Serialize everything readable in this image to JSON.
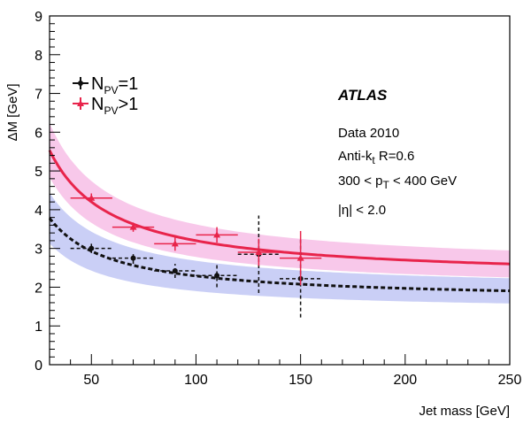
{
  "chart_data": {
    "type": "line",
    "title": "",
    "xlabel": "Jet mass [GeV]",
    "ylabel": "ΔM  [GeV]",
    "xlim": [
      30,
      250
    ],
    "ylim": [
      0,
      9
    ],
    "x_ticks": [
      50,
      100,
      150,
      200,
      250
    ],
    "y_ticks": [
      0,
      1,
      2,
      3,
      4,
      5,
      6,
      7,
      8,
      9
    ],
    "legend": {
      "placement": "top-left",
      "entries": [
        {
          "main": "N",
          "sub": "PV",
          "rest": "=1",
          "color": "#111111"
        },
        {
          "main": "N",
          "sub": "PV",
          "rest": ">1",
          "color": "#e8244b"
        }
      ]
    },
    "annotations": {
      "experiment": "ATLAS",
      "line1": "Data 2010",
      "line2_main": "Anti-k",
      "line2_sub": "t",
      "line2_rest": " R=0.6",
      "line3_a": "300 < p",
      "line3_sub": "T",
      "line3_b": " < 400 GeV",
      "line4": "|η| < 2.0"
    },
    "series": [
      {
        "name": "NPV=1",
        "color": "#111111",
        "band_color": "#9fa8ee",
        "points": [
          {
            "x": 50,
            "y": 3.0,
            "xerr": 10,
            "yerr": 0.12
          },
          {
            "x": 70,
            "y": 2.75,
            "xerr": 10,
            "yerr": 0.15
          },
          {
            "x": 90,
            "y": 2.42,
            "xerr": 10,
            "yerr": 0.18
          },
          {
            "x": 110,
            "y": 2.3,
            "xerr": 10,
            "yerr": 0.3
          },
          {
            "x": 130,
            "y": 2.85,
            "xerr": 10,
            "yerr": 1.0
          },
          {
            "x": 150,
            "y": 2.22,
            "xerr": 10,
            "yerr": 1.0
          }
        ],
        "fit": {
          "a": 1.65,
          "b": 64,
          "band": 0.28
        }
      },
      {
        "name": "NPV>1",
        "color": "#e8244b",
        "band_color": "#f39ad8",
        "points": [
          {
            "x": 50,
            "y": 4.3,
            "xerr": 10,
            "yerr": 0.12
          },
          {
            "x": 70,
            "y": 3.55,
            "xerr": 10,
            "yerr": 0.12
          },
          {
            "x": 90,
            "y": 3.12,
            "xerr": 10,
            "yerr": 0.18
          },
          {
            "x": 110,
            "y": 3.35,
            "xerr": 10,
            "yerr": 0.2
          },
          {
            "x": 130,
            "y": 2.9,
            "xerr": 10,
            "yerr": 0.35
          },
          {
            "x": 150,
            "y": 2.75,
            "xerr": 10,
            "yerr": 0.7
          }
        ],
        "fit": {
          "a": 2.2,
          "b": 100,
          "band": 0.3
        }
      }
    ]
  }
}
